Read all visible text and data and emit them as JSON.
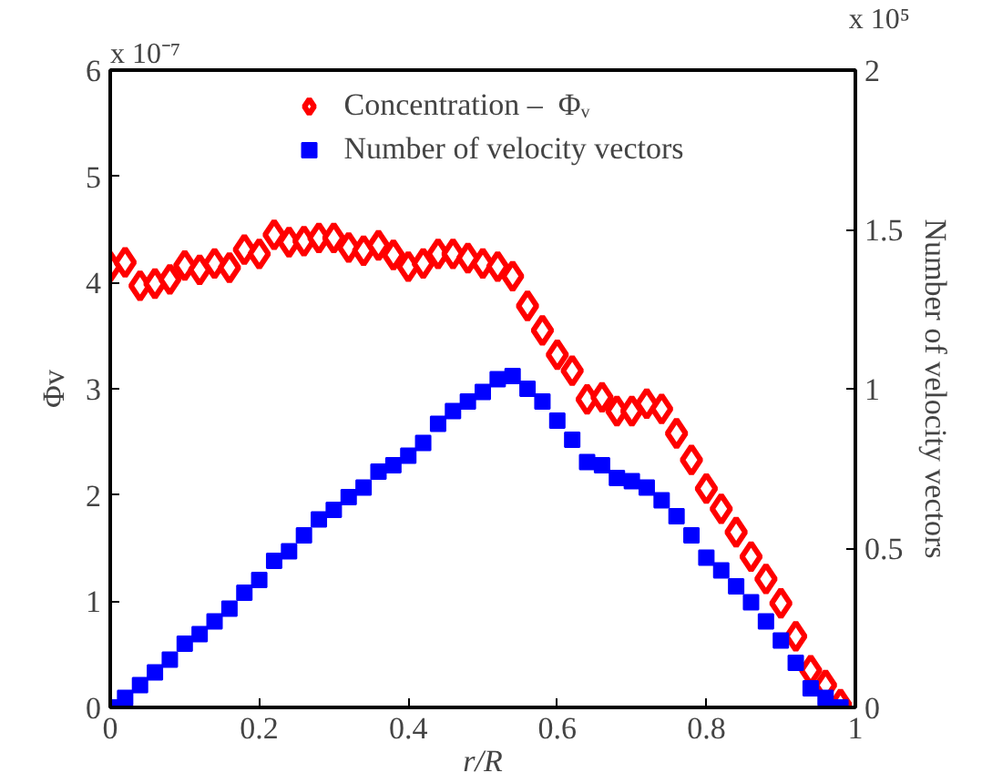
{
  "chart_data": {
    "type": "scatter",
    "xlabel": "r/R",
    "ylabel": "Φv",
    "y2label": "Number of velocity vectors",
    "x": [
      0,
      0.02,
      0.04,
      0.06,
      0.08,
      0.1,
      0.12,
      0.14,
      0.16,
      0.18,
      0.2,
      0.22,
      0.24,
      0.26,
      0.28,
      0.3,
      0.32,
      0.34,
      0.36,
      0.38,
      0.4,
      0.42,
      0.44,
      0.46,
      0.48,
      0.5,
      0.52,
      0.54,
      0.56,
      0.58,
      0.6,
      0.62,
      0.64,
      0.66,
      0.68,
      0.7,
      0.72,
      0.74,
      0.76,
      0.78,
      0.8,
      0.82,
      0.84,
      0.86,
      0.88,
      0.9,
      0.92,
      0.94,
      0.96,
      0.98
    ],
    "series": [
      {
        "name": "Concentration –  Φᵥ",
        "color": "#ff0000",
        "marker": "diamond",
        "values": [
          4.15,
          4.19,
          3.97,
          3.99,
          4.03,
          4.16,
          4.12,
          4.18,
          4.14,
          4.31,
          4.27,
          4.45,
          4.38,
          4.39,
          4.42,
          4.42,
          4.33,
          4.3,
          4.35,
          4.26,
          4.15,
          4.18,
          4.27,
          4.27,
          4.23,
          4.18,
          4.15,
          4.06,
          3.78,
          3.55,
          3.32,
          3.17,
          2.9,
          2.92,
          2.79,
          2.79,
          2.86,
          2.81,
          2.58,
          2.33,
          2.06,
          1.87,
          1.65,
          1.42,
          1.21,
          0.98,
          0.67,
          0.35,
          0.21,
          0.03
        ]
      },
      {
        "name": "Number of velocity vectors",
        "color": "#0000ff",
        "marker": "square",
        "axis": "y2",
        "values": [
          0,
          0.03,
          0.07,
          0.11,
          0.15,
          0.2,
          0.23,
          0.27,
          0.31,
          0.36,
          0.4,
          0.46,
          0.49,
          0.54,
          0.59,
          0.62,
          0.66,
          0.69,
          0.74,
          0.76,
          0.79,
          0.83,
          0.89,
          0.93,
          0.96,
          0.99,
          1.03,
          1.04,
          1.0,
          0.96,
          0.9,
          0.84,
          0.77,
          0.76,
          0.72,
          0.71,
          0.69,
          0.65,
          0.6,
          0.54,
          0.47,
          0.43,
          0.38,
          0.33,
          0.27,
          0.21,
          0.14,
          0.06,
          0.03,
          0
        ]
      }
    ],
    "xlim": [
      0,
      1
    ],
    "xticks": [
      0,
      0.2,
      0.4,
      0.6,
      0.8,
      1
    ],
    "ylim": [
      0,
      6
    ],
    "yticks": [
      0,
      1,
      2,
      3,
      4,
      5,
      6
    ],
    "y2lim": [
      0,
      2
    ],
    "y2ticks": [
      0,
      0.5,
      1,
      1.5,
      2
    ],
    "annotations": [
      "x 10⁻⁷",
      "x 10⁵"
    ],
    "legend": "top",
    "grid": false
  }
}
